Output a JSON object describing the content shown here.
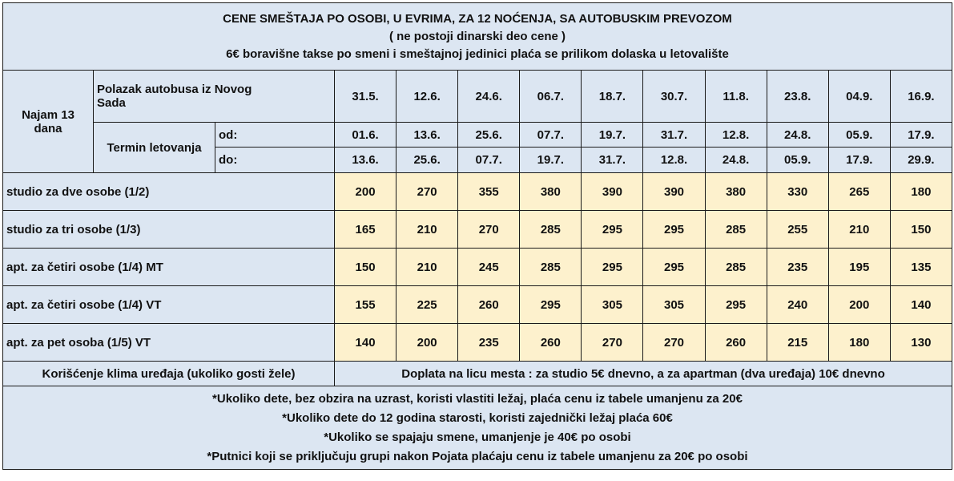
{
  "header": {
    "title": "CENE SMEŠTAJA PO OSOBI, U EVRIMA, ZA 12 NOĆENJA, SA AUTOBUSKIM PREVOZOM",
    "subtitle": "( ne postoji dinarski deo cene )",
    "note": "6€ boravišne takse po smeni i smeštajnoj jedinici plaća se prilikom dolaska u letovalište"
  },
  "labels": {
    "rental": "Najam 13 dana",
    "departure": "Polazak autobusa iz  Novog Sada",
    "term": "Termin letovanja",
    "from": "od:",
    "to": "do:"
  },
  "departures": [
    "31.5.",
    "12.6.",
    "24.6.",
    "06.7.",
    "18.7.",
    "30.7.",
    "11.8.",
    "23.8.",
    "04.9.",
    "16.9."
  ],
  "from_dates": [
    "01.6.",
    "13.6.",
    "25.6.",
    "07.7.",
    "19.7.",
    "31.7.",
    "12.8.",
    "24.8.",
    "05.9.",
    "17.9."
  ],
  "to_dates": [
    "13.6.",
    "25.6.",
    "07.7.",
    "19.7.",
    "31.7.",
    "12.8.",
    "24.8.",
    "05.9.",
    "17.9.",
    "29.9."
  ],
  "rows": [
    {
      "label": "studio za dve osobe (1/2)",
      "prices": [
        "200",
        "270",
        "355",
        "380",
        "390",
        "390",
        "380",
        "330",
        "265",
        "180"
      ]
    },
    {
      "label": "studio za tri osobe (1/3)",
      "prices": [
        "165",
        "210",
        "270",
        "285",
        "295",
        "295",
        "285",
        "255",
        "210",
        "150"
      ]
    },
    {
      "label": "apt. za četiri osobe (1/4) MT",
      "prices": [
        "150",
        "210",
        "245",
        "285",
        "295",
        "295",
        "285",
        "235",
        "195",
        "135"
      ]
    },
    {
      "label": "apt. za četiri osobe (1/4) VT",
      "prices": [
        "155",
        "225",
        "260",
        "295",
        "305",
        "305",
        "295",
        "240",
        "200",
        "140"
      ]
    },
    {
      "label": "apt. za pet osoba (1/5) VT",
      "prices": [
        "140",
        "200",
        "235",
        "260",
        "270",
        "270",
        "260",
        "215",
        "180",
        "130"
      ]
    }
  ],
  "klima": {
    "label": "Korišćenje klima uređaja (ukoliko gosti žele)",
    "value": "Doplata na licu mesta : za studio 5€ dnevno, a za apartman (dva uređaja) 10€ dnevno"
  },
  "footer": [
    "*Ukoliko dete, bez obzira na uzrast, koristi vlastiti ležaj, plaća cenu iz tabele umanjenu za 20€",
    "*Ukoliko dete do 12 godina starosti, koristi zajednički ležaj plaća  60€",
    "*Ukoliko se spajaju smene, umanjenje je 40€ po osobi",
    "*Putnici koji se priključuju grupi nakon Pojata plaćaju cenu iz tabele umanjenu za 20€ po osobi"
  ]
}
